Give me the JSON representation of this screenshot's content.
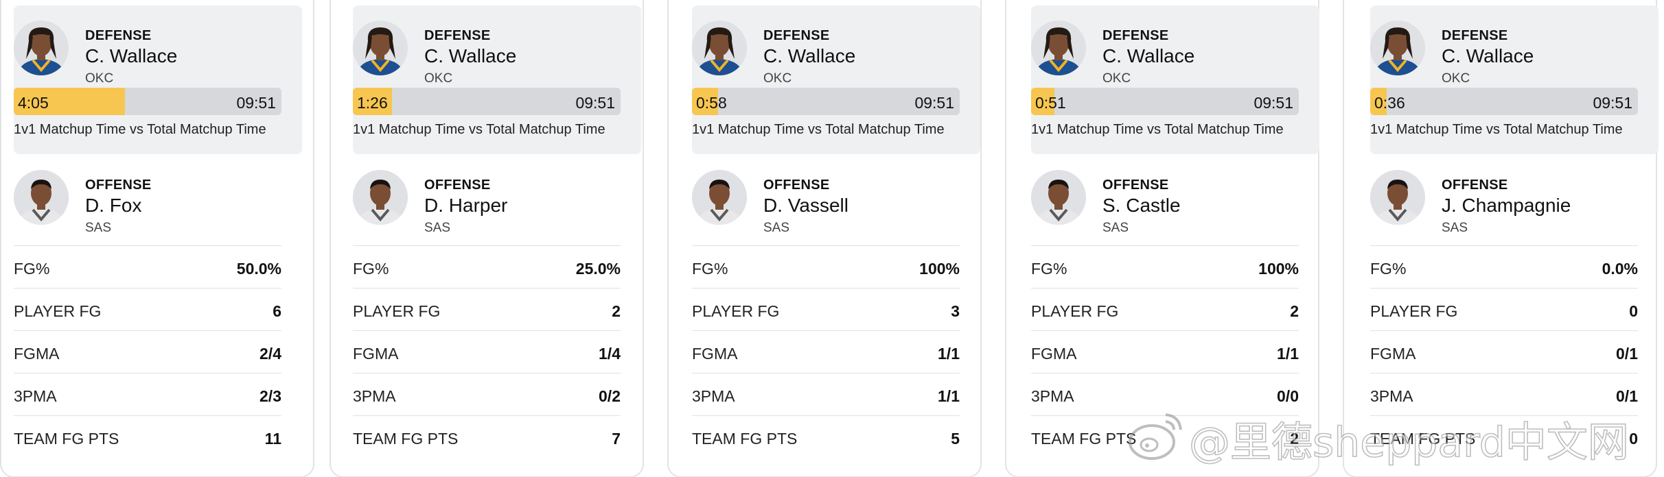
{
  "caption_text": "1v1 Matchup Time vs Total Matchup Time",
  "stat_labels": [
    "FG%",
    "PLAYER FG",
    "FGMA",
    "3PMA",
    "TEAM FG PTS"
  ],
  "colors": {
    "matchup_bar_fill": "#f6c650",
    "matchup_bar_track": "#d6d8dc",
    "defense_panel": "#eff0f2"
  },
  "cards": [
    {
      "defense": {
        "role": "DEFENSE",
        "name": "C. Wallace",
        "team": "OKC",
        "avatar": "player-headshot-icon"
      },
      "matchup_time": "4:05",
      "total_time": "09:51",
      "matchup_fraction": 0.415,
      "offense": {
        "role": "OFFENSE",
        "name": "D. Fox",
        "team": "SAS",
        "avatar": "player-headshot-icon"
      },
      "stats": [
        "50.0%",
        "6",
        "2/4",
        "2/3",
        "11"
      ]
    },
    {
      "defense": {
        "role": "DEFENSE",
        "name": "C. Wallace",
        "team": "OKC",
        "avatar": "player-headshot-icon"
      },
      "matchup_time": "1:26",
      "total_time": "09:51",
      "matchup_fraction": 0.146,
      "offense": {
        "role": "OFFENSE",
        "name": "D. Harper",
        "team": "SAS",
        "avatar": "player-headshot-icon"
      },
      "stats": [
        "25.0%",
        "2",
        "1/4",
        "0/2",
        "7"
      ]
    },
    {
      "defense": {
        "role": "DEFENSE",
        "name": "C. Wallace",
        "team": "OKC",
        "avatar": "player-headshot-icon"
      },
      "matchup_time": "0:58",
      "total_time": "09:51",
      "matchup_fraction": 0.098,
      "offense": {
        "role": "OFFENSE",
        "name": "D. Vassell",
        "team": "SAS",
        "avatar": "player-headshot-icon"
      },
      "stats": [
        "100%",
        "3",
        "1/1",
        "1/1",
        "5"
      ]
    },
    {
      "defense": {
        "role": "DEFENSE",
        "name": "C. Wallace",
        "team": "OKC",
        "avatar": "player-headshot-icon"
      },
      "matchup_time": "0:51",
      "total_time": "09:51",
      "matchup_fraction": 0.086,
      "offense": {
        "role": "OFFENSE",
        "name": "S. Castle",
        "team": "SAS",
        "avatar": "player-headshot-icon"
      },
      "stats": [
        "100%",
        "2",
        "1/1",
        "0/0",
        "2"
      ]
    },
    {
      "defense": {
        "role": "DEFENSE",
        "name": "C. Wallace",
        "team": "OKC",
        "avatar": "player-headshot-icon"
      },
      "matchup_time": "0:36",
      "total_time": "09:51",
      "matchup_fraction": 0.061,
      "offense": {
        "role": "OFFENSE",
        "name": "J. Champagnie",
        "team": "SAS",
        "avatar": "player-headshot-icon"
      },
      "stats": [
        "0.0%",
        "0",
        "0/1",
        "0/1",
        "0"
      ]
    }
  ],
  "watermark": {
    "text": "@里德sheppard中文网",
    "icon": "weibo-logo-icon"
  }
}
